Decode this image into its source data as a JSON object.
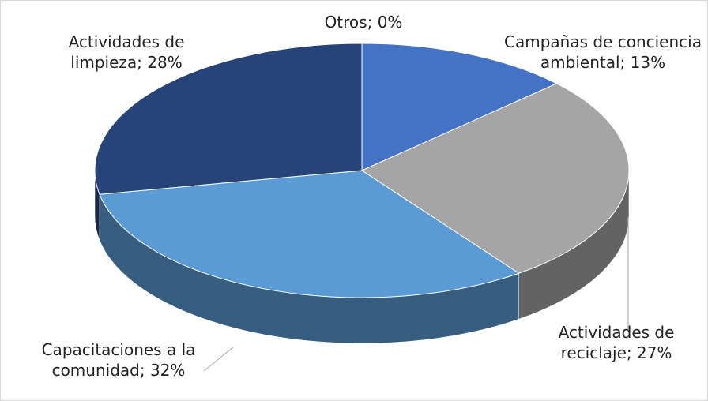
{
  "chart_data": {
    "type": "pie",
    "categories": [
      "Campañas de conciencia ambiental;",
      "Actividades de reciclaje;",
      "Capacitaciones a la comunidad;",
      "Actividades de limpieza;",
      "Otros;"
    ],
    "values": [
      13,
      27,
      32,
      28,
      0
    ],
    "value_labels": [
      "13%",
      "27%",
      "32%",
      "28%",
      "0%"
    ],
    "colors": [
      "#4472c4",
      "#a5a5a5",
      "#5b9bd5",
      "#264478",
      "#70ad47"
    ]
  }
}
